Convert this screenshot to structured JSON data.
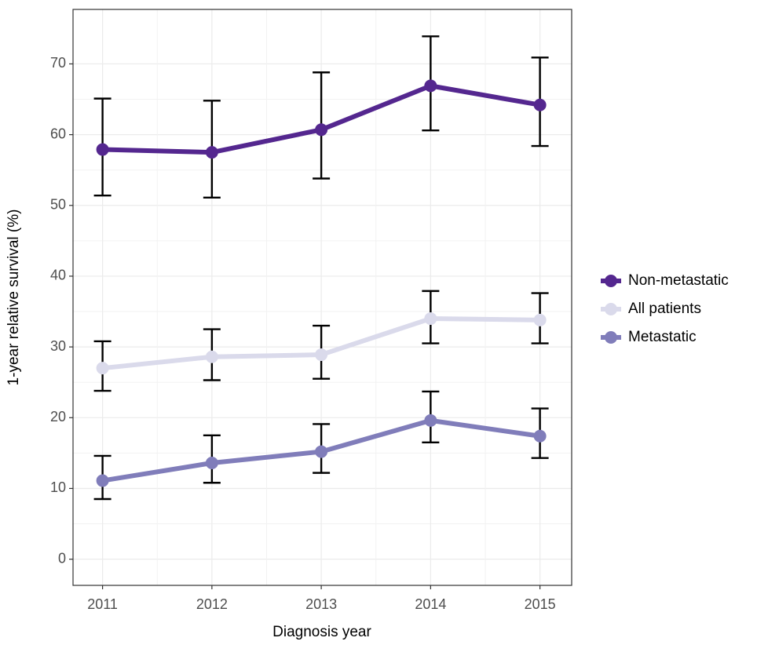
{
  "chart_data": {
    "type": "line",
    "x_label": "Diagnosis year",
    "y_label": "1-year relative survival (%)",
    "x": [
      2011,
      2012,
      2013,
      2014,
      2015
    ],
    "xlim": [
      2010.73,
      2015.29
    ],
    "xticks": [
      2011,
      2012,
      2013,
      2014,
      2015
    ],
    "ylim": [
      -3.7,
      77.7
    ],
    "yticks": [
      0,
      10,
      20,
      30,
      40,
      50,
      60,
      70
    ],
    "grid": true,
    "legend": "right",
    "series": [
      {
        "name": "Non-metastatic",
        "color": "#54278f",
        "values": [
          57.9,
          57.5,
          60.7,
          66.9,
          64.2
        ],
        "lower": [
          51.4,
          51.1,
          53.8,
          60.6,
          58.4
        ],
        "upper": [
          65.1,
          64.8,
          68.8,
          73.9,
          70.9
        ]
      },
      {
        "name": "All patients",
        "color": "#dadaeb",
        "values": [
          27.0,
          28.6,
          28.9,
          34.0,
          33.8
        ],
        "lower": [
          23.8,
          25.3,
          25.5,
          30.5,
          30.5
        ],
        "upper": [
          30.8,
          32.5,
          33.0,
          37.9,
          37.6
        ]
      },
      {
        "name": "Metastatic",
        "color": "#807dba",
        "values": [
          11.1,
          13.6,
          15.2,
          19.6,
          17.4
        ],
        "lower": [
          8.5,
          10.8,
          12.2,
          16.5,
          14.3
        ],
        "upper": [
          14.6,
          17.5,
          19.1,
          23.7,
          21.3
        ]
      }
    ]
  }
}
